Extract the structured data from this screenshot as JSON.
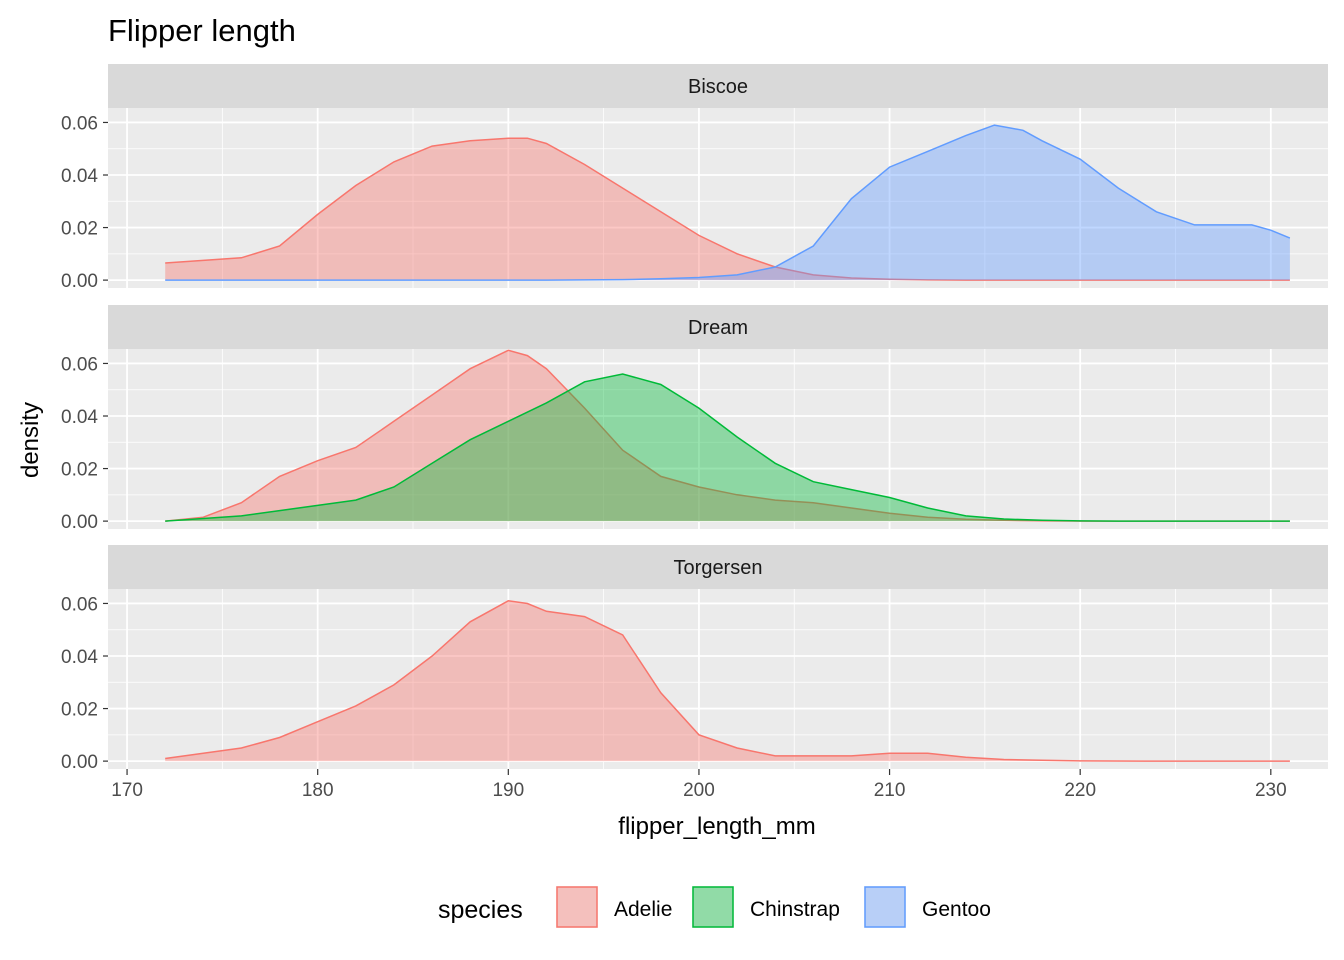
{
  "chart_data": {
    "type": "area",
    "title": "Flipper length",
    "xlabel": "flipper_length_mm",
    "ylabel": "density",
    "xlim": [
      169,
      233
    ],
    "ylim": [
      -0.003,
      0.0655
    ],
    "x_ticks": [
      170,
      180,
      190,
      200,
      210,
      220,
      230
    ],
    "y_ticks": [
      0,
      0.02,
      0.04,
      0.06
    ],
    "y_tick_labels": [
      "0.00",
      "0.02",
      "0.04",
      "0.06"
    ],
    "facet_by": "island",
    "grid": true,
    "legend": {
      "title": "species",
      "position": "bottom",
      "entries": [
        "Adelie",
        "Chinstrap",
        "Gentoo"
      ]
    },
    "colors": {
      "Adelie": "#F8766D",
      "Chinstrap": "#00BA38",
      "Gentoo": "#619CFF",
      "panel_bg": "#EBEBEB",
      "strip_bg": "#D9D9D9",
      "grid": "#FFFFFF"
    },
    "fill_alpha": 0.4,
    "panels": [
      {
        "name": "Biscoe",
        "series": [
          {
            "name": "Adelie",
            "x": [
              172,
              174,
              176,
              178,
              180,
              182,
              184,
              186,
              188,
              190,
              191,
              192,
              194,
              196,
              198,
              200,
              202,
              204,
              206,
              208,
              210,
              212,
              214,
              216,
              218,
              220,
              222,
              224,
              226,
              228,
              231
            ],
            "y": [
              0.0065,
              0.0075,
              0.0085,
              0.013,
              0.025,
              0.036,
              0.045,
              0.051,
              0.053,
              0.054,
              0.054,
              0.052,
              0.044,
              0.035,
              0.026,
              0.017,
              0.01,
              0.005,
              0.002,
              0.0008,
              0.0003,
              0.0001,
              0,
              0,
              0,
              0,
              0,
              0,
              0,
              0,
              0
            ]
          },
          {
            "name": "Gentoo",
            "x": [
              172,
              176,
              180,
              184,
              188,
              192,
              194,
              196,
              198,
              200,
              202,
              204,
              206,
              208,
              210,
              212,
              214,
              215.5,
              217,
              218,
              220,
              222,
              224,
              226,
              228,
              229,
              230,
              231
            ],
            "y": [
              0,
              0,
              0,
              0,
              0,
              0,
              0.0001,
              0.0002,
              0.0005,
              0.001,
              0.002,
              0.005,
              0.013,
              0.031,
              0.043,
              0.049,
              0.055,
              0.059,
              0.057,
              0.053,
              0.046,
              0.035,
              0.026,
              0.021,
              0.021,
              0.021,
              0.019,
              0.016
            ]
          }
        ]
      },
      {
        "name": "Dream",
        "series": [
          {
            "name": "Adelie",
            "x": [
              172,
              174,
              176,
              178,
              180,
              182,
              184,
              186,
              188,
              190,
              191,
              192,
              194,
              196,
              198,
              200,
              202,
              204,
              206,
              208,
              210,
              212,
              214,
              216,
              218,
              220,
              222,
              226,
              231
            ],
            "y": [
              0,
              0.0015,
              0.007,
              0.017,
              0.023,
              0.028,
              0.038,
              0.048,
              0.058,
              0.065,
              0.063,
              0.058,
              0.043,
              0.027,
              0.017,
              0.013,
              0.01,
              0.008,
              0.007,
              0.005,
              0.003,
              0.0015,
              0.0007,
              0.0003,
              0.0001,
              0,
              0,
              0,
              0
            ]
          },
          {
            "name": "Chinstrap",
            "x": [
              172,
              174,
              176,
              178,
              180,
              182,
              184,
              186,
              188,
              190,
              192,
              194,
              196,
              198,
              200,
              202,
              204,
              206,
              208,
              210,
              212,
              214,
              216,
              218,
              220,
              222,
              226,
              231
            ],
            "y": [
              0,
              0.001,
              0.002,
              0.004,
              0.006,
              0.008,
              0.013,
              0.022,
              0.031,
              0.038,
              0.045,
              0.053,
              0.056,
              0.052,
              0.043,
              0.032,
              0.022,
              0.015,
              0.012,
              0.009,
              0.005,
              0.002,
              0.0008,
              0.0003,
              0.0001,
              0,
              0,
              0
            ]
          }
        ]
      },
      {
        "name": "Torgersen",
        "series": [
          {
            "name": "Adelie",
            "x": [
              172,
              174,
              176,
              178,
              180,
              182,
              184,
              186,
              188,
              190,
              191,
              192,
              194,
              196,
              198,
              200,
              202,
              204,
              206,
              208,
              210,
              212,
              214,
              216,
              218,
              220,
              224,
              228,
              231
            ],
            "y": [
              0.001,
              0.003,
              0.005,
              0.009,
              0.015,
              0.021,
              0.029,
              0.04,
              0.053,
              0.061,
              0.06,
              0.057,
              0.055,
              0.048,
              0.026,
              0.01,
              0.005,
              0.002,
              0.002,
              0.002,
              0.003,
              0.003,
              0.0015,
              0.0006,
              0.0003,
              0.0001,
              0,
              0,
              0
            ]
          }
        ]
      }
    ]
  }
}
